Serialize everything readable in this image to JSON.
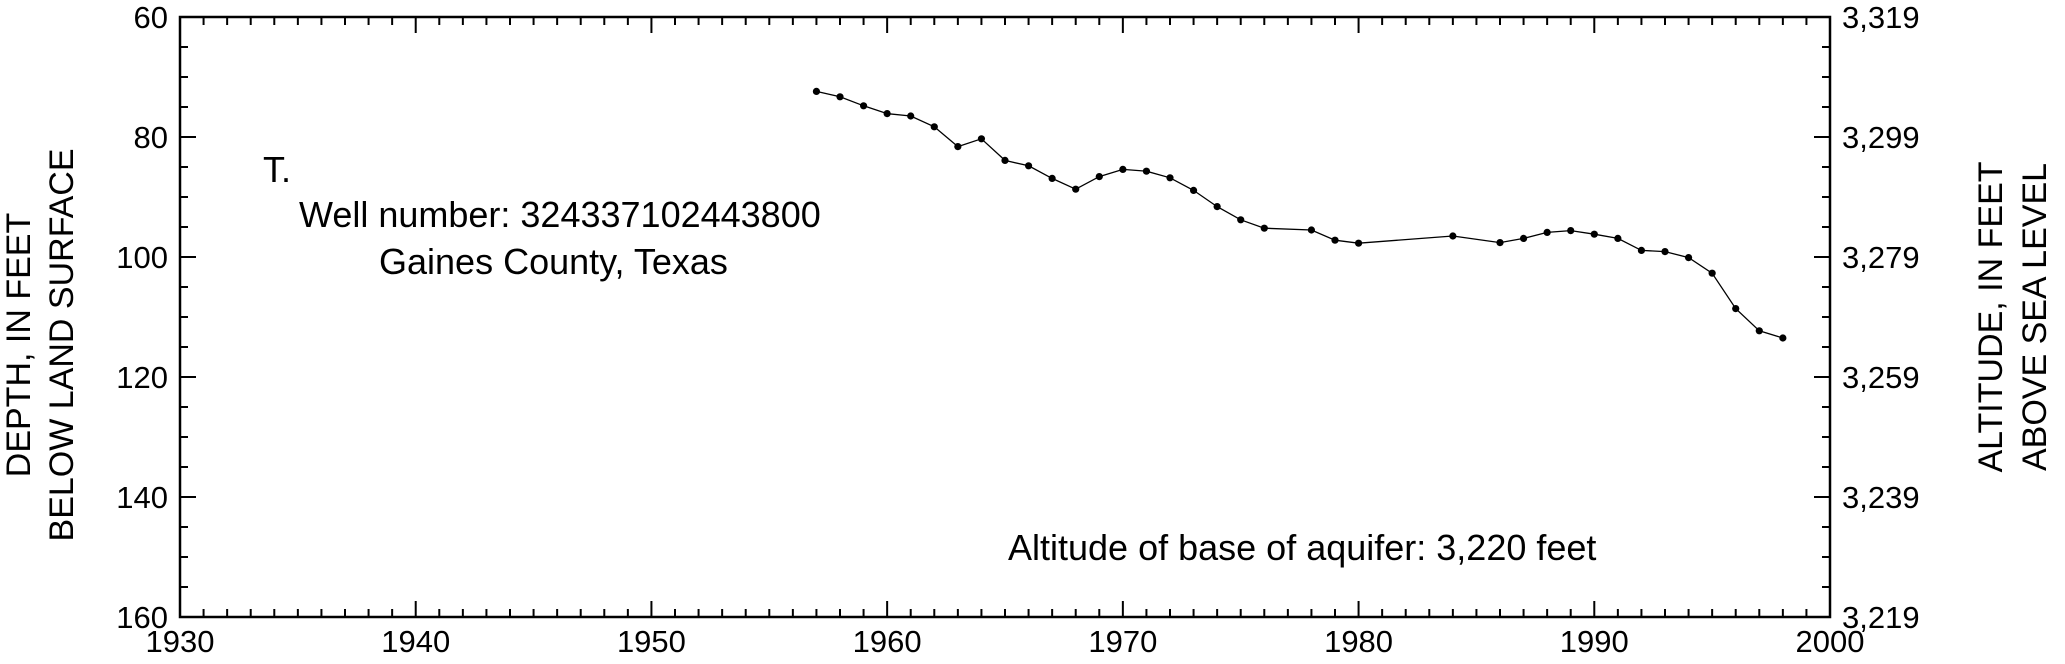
{
  "chart_data": {
    "type": "line",
    "panel_label": "T.",
    "title": "Well number: 324337102443800",
    "subtitle": "Gaines County, Texas",
    "annotation": "Altitude of base of aquifer: 3,220 feet",
    "ylabel_left": [
      "DEPTH, IN FEET",
      "BELOW LAND SURFACE"
    ],
    "ylabel_right": [
      "ALTITUDE, IN FEET",
      "ABOVE SEA LEVEL"
    ],
    "xlim": [
      1930,
      2000
    ],
    "ylim_depth": [
      60,
      160
    ],
    "y_inverted": true,
    "ylim_altitude": [
      3319,
      3219
    ],
    "x_ticks": [
      {
        "value": 1930,
        "label": "1930"
      },
      {
        "value": 1940,
        "label": "1940"
      },
      {
        "value": 1950,
        "label": "1950"
      },
      {
        "value": 1960,
        "label": "1960"
      },
      {
        "value": 1970,
        "label": "1970"
      },
      {
        "value": 1980,
        "label": "1980"
      },
      {
        "value": 1990,
        "label": "1990"
      },
      {
        "value": 2000,
        "label": "2000"
      }
    ],
    "y_ticks_left": [
      {
        "value": 60,
        "label": "60"
      },
      {
        "value": 80,
        "label": "80"
      },
      {
        "value": 100,
        "label": "100"
      },
      {
        "value": 120,
        "label": "120"
      },
      {
        "value": 140,
        "label": "140"
      },
      {
        "value": 160,
        "label": "160"
      }
    ],
    "y_ticks_right": [
      {
        "value": 60,
        "label": "3,319"
      },
      {
        "value": 80,
        "label": "3,299"
      },
      {
        "value": 100,
        "label": "3,279"
      },
      {
        "value": 120,
        "label": "3,259"
      },
      {
        "value": 140,
        "label": "3,239"
      },
      {
        "value": 160,
        "label": "3,219"
      }
    ],
    "x_minor_step": 1,
    "y_minor_step": 5,
    "series": [
      {
        "x": [
          1957,
          1958,
          1959,
          1960,
          1961,
          1962,
          1963,
          1964,
          1965,
          1966,
          1967,
          1968,
          1969,
          1970,
          1971,
          1972,
          1973,
          1974,
          1975,
          1976,
          1978,
          1979,
          1980,
          1984,
          1986,
          1987,
          1988,
          1989,
          1990,
          1991,
          1992,
          1993,
          1994,
          1995,
          1996,
          1997,
          1998
        ],
        "y": [
          72.4,
          73.3,
          74.8,
          76.1,
          76.5,
          78.3,
          81.6,
          80.3,
          83.9,
          84.8,
          86.9,
          88.7,
          86.6,
          85.4,
          85.7,
          86.8,
          88.9,
          91.6,
          93.8,
          95.2,
          95.5,
          97.2,
          97.7,
          96.5,
          97.6,
          96.9,
          95.9,
          95.6,
          96.2,
          96.9,
          98.9,
          99.1,
          100.1,
          102.7,
          108.6,
          112.3,
          113.5
        ]
      }
    ],
    "colors": {
      "line": "#000000",
      "marker": "#000000",
      "axes": "#000000",
      "background": "#ffffff"
    }
  }
}
